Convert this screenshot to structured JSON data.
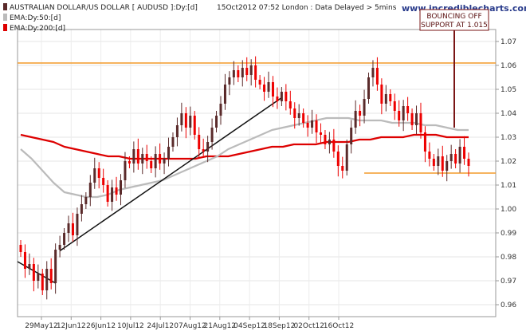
{
  "chart_data": {
    "type": "candlestick",
    "header": {
      "title": "AUSTRALIAN DOLLAR/US DOLLAR [ AUDUSD ]:Dy:[d]",
      "timestamp": "15Oct2012 07:52 London : Data Delayed > 5mins",
      "source": "www.incrediblecharts.com"
    },
    "legend": [
      {
        "name": "EMA:Dy:50:[d]",
        "color": "#bbbbbb"
      },
      {
        "name": "EMA:Dy:200:[d]",
        "color": "#dd0000"
      }
    ],
    "colors": {
      "up": "#5a2a2a",
      "down": "#ee0000",
      "ema50": "#bbbbbb",
      "ema200": "#dd0000",
      "resistance": "#f39a2a",
      "trendline": "#111111",
      "annotation": "#7a1515"
    },
    "ylim": [
      0.955,
      1.075
    ],
    "yticks": [
      "1.07",
      "1.06",
      "1.05",
      "1.04",
      "1.03",
      "1.02",
      "1.01",
      "1.00",
      "0.99",
      "0.98",
      "0.97",
      "0.96"
    ],
    "xticks": [
      "29May12",
      "12Jun12",
      "26Jun12",
      "10Jul12",
      "24Jul12",
      "07Aug12",
      "21Aug12",
      "04Sep12",
      "18Sep12",
      "02Oct12",
      "16Oct12"
    ],
    "closes": [
      0.982,
      0.975,
      0.977,
      0.97,
      0.973,
      0.966,
      0.975,
      0.969,
      0.983,
      0.985,
      0.99,
      0.994,
      0.989,
      0.998,
      1.002,
      1.005,
      1.011,
      1.017,
      1.013,
      1.01,
      1.003,
      1.009,
      1.006,
      1.012,
      1.02,
      1.019,
      1.025,
      1.019,
      1.023,
      1.02,
      1.017,
      1.023,
      1.019,
      1.021,
      1.026,
      1.03,
      1.035,
      1.04,
      1.034,
      1.039,
      1.031,
      1.025,
      1.024,
      1.028,
      1.034,
      1.039,
      1.044,
      1.052,
      1.055,
      1.058,
      1.055,
      1.059,
      1.056,
      1.06,
      1.054,
      1.052,
      1.049,
      1.053,
      1.047,
      1.045,
      1.049,
      1.045,
      1.042,
      1.038,
      1.04,
      1.036,
      1.034,
      1.037,
      1.032,
      1.031,
      1.027,
      1.029,
      1.024,
      1.018,
      1.016,
      1.027,
      1.034,
      1.041,
      1.039,
      1.046,
      1.055,
      1.059,
      1.052,
      1.044,
      1.048,
      1.045,
      1.041,
      1.037,
      1.043,
      1.04,
      1.035,
      1.04,
      1.032,
      1.024,
      1.021,
      1.018,
      1.022,
      1.016,
      1.02,
      1.023,
      1.019,
      1.026,
      1.021,
      1.018
    ],
    "ema50": [
      1.025,
      1.021,
      1.016,
      1.011,
      1.007,
      1.006,
      1.005,
      1.005,
      1.006,
      1.008,
      1.009,
      1.01,
      1.011,
      1.012,
      1.014,
      1.016,
      1.018,
      1.02,
      1.022,
      1.025,
      1.027,
      1.029,
      1.031,
      1.033,
      1.034,
      1.035,
      1.036,
      1.037,
      1.038,
      1.038,
      1.038,
      1.037,
      1.037,
      1.037,
      1.036,
      1.036,
      1.036,
      1.035,
      1.035,
      1.034,
      1.033,
      1.033
    ],
    "ema200": [
      1.031,
      1.03,
      1.029,
      1.028,
      1.026,
      1.025,
      1.024,
      1.023,
      1.022,
      1.022,
      1.021,
      1.021,
      1.021,
      1.021,
      1.021,
      1.021,
      1.021,
      1.022,
      1.022,
      1.022,
      1.023,
      1.024,
      1.025,
      1.026,
      1.026,
      1.027,
      1.027,
      1.027,
      1.028,
      1.028,
      1.028,
      1.029,
      1.029,
      1.03,
      1.03,
      1.03,
      1.031,
      1.031,
      1.031,
      1.03,
      1.03,
      1.03
    ],
    "resistance": 1.061,
    "support": 1.015,
    "annotation": {
      "line1": "BOUNCING OFF",
      "line2": "SUPPORT AT 1.015"
    }
  }
}
